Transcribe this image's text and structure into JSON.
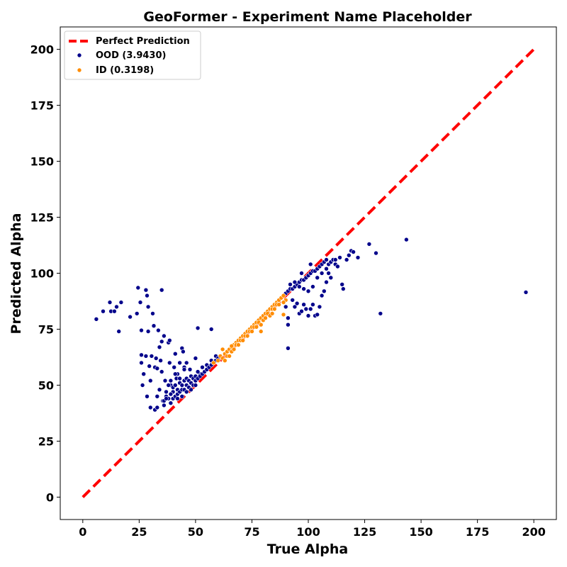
{
  "chart_data": {
    "type": "scatter",
    "title": "GeoFormer - Experiment Name Placeholder",
    "xlabel": "True Alpha",
    "ylabel": "Predicted Alpha",
    "xlim": [
      -10,
      210
    ],
    "ylim": [
      -10,
      210
    ],
    "xticks": [
      0,
      25,
      50,
      75,
      100,
      125,
      150,
      175,
      200
    ],
    "yticks": [
      0,
      25,
      50,
      75,
      100,
      125,
      150,
      175,
      200
    ],
    "grid": false,
    "legend_position": "top-left",
    "reference_line": {
      "name": "Perfect Prediction",
      "color": "#ff0000",
      "style": "dashed",
      "x": [
        0,
        200
      ],
      "y": [
        0,
        200
      ]
    },
    "series": [
      {
        "name": "OOD (3.9430)",
        "color": "#00008b",
        "points": [
          [
            6,
            79.5
          ],
          [
            9,
            83
          ],
          [
            12,
            87
          ],
          [
            12.5,
            83
          ],
          [
            14,
            83
          ],
          [
            15,
            85
          ],
          [
            16,
            74
          ],
          [
            17,
            87
          ],
          [
            21,
            80.5
          ],
          [
            24,
            82
          ],
          [
            24.5,
            93.5
          ],
          [
            25.5,
            87
          ],
          [
            26,
            74.5
          ],
          [
            26,
            63.5
          ],
          [
            26,
            60
          ],
          [
            26.5,
            50
          ],
          [
            27,
            55
          ],
          [
            28,
            92.5
          ],
          [
            28,
            63
          ],
          [
            28.5,
            90
          ],
          [
            28.5,
            45
          ],
          [
            29,
            85
          ],
          [
            29,
            74
          ],
          [
            29.5,
            58.5
          ],
          [
            30,
            40
          ],
          [
            30,
            52
          ],
          [
            30.5,
            63
          ],
          [
            31,
            82
          ],
          [
            31.5,
            76.5
          ],
          [
            32,
            58
          ],
          [
            32,
            39
          ],
          [
            32.5,
            62
          ],
          [
            33,
            57.5
          ],
          [
            33,
            45
          ],
          [
            33,
            40
          ],
          [
            33.5,
            74.5
          ],
          [
            34,
            67
          ],
          [
            34,
            48
          ],
          [
            34.5,
            61
          ],
          [
            35,
            92.5
          ],
          [
            35,
            69.5
          ],
          [
            35,
            56
          ],
          [
            35.5,
            43
          ],
          [
            36,
            72
          ],
          [
            36.5,
            52
          ],
          [
            37,
            45
          ],
          [
            38,
            69
          ],
          [
            38.5,
            60
          ],
          [
            38.5,
            70
          ],
          [
            39,
            50
          ],
          [
            40,
            47
          ],
          [
            40.5,
            58
          ],
          [
            41,
            64
          ],
          [
            41.5,
            53
          ],
          [
            42,
            55
          ],
          [
            43,
            60
          ],
          [
            44,
            66.5
          ],
          [
            44.5,
            65
          ],
          [
            45,
            58
          ],
          [
            46,
            60
          ],
          [
            47.5,
            57
          ],
          [
            50,
            62
          ],
          [
            51,
            75.5
          ],
          [
            52,
            55
          ],
          [
            55,
            59
          ],
          [
            57,
            75
          ],
          [
            36,
            43
          ],
          [
            37,
            47
          ],
          [
            38,
            44
          ],
          [
            38,
            50
          ],
          [
            39,
            46
          ],
          [
            40,
            44
          ],
          [
            40,
            49
          ],
          [
            41,
            45
          ],
          [
            41,
            50
          ],
          [
            42,
            46
          ],
          [
            42,
            48
          ],
          [
            43,
            47
          ],
          [
            43,
            51
          ],
          [
            44,
            48
          ],
          [
            44,
            50
          ],
          [
            45,
            48
          ],
          [
            45,
            52
          ],
          [
            46,
            50
          ],
          [
            46,
            53
          ],
          [
            47,
            49
          ],
          [
            47,
            52
          ],
          [
            48,
            51
          ],
          [
            48,
            54
          ],
          [
            49,
            50
          ],
          [
            49,
            53
          ],
          [
            50,
            52
          ],
          [
            50,
            54
          ],
          [
            51,
            53
          ],
          [
            51,
            56
          ],
          [
            52,
            54
          ],
          [
            53,
            55
          ],
          [
            53,
            58
          ],
          [
            54,
            56
          ],
          [
            55,
            57
          ],
          [
            55,
            59
          ],
          [
            56,
            58
          ],
          [
            57,
            59
          ],
          [
            57,
            61
          ],
          [
            58,
            60
          ],
          [
            59,
            61
          ],
          [
            59,
            63
          ],
          [
            60,
            62
          ],
          [
            36,
            41
          ],
          [
            37,
            44
          ],
          [
            39,
            42
          ],
          [
            42,
            44
          ],
          [
            44,
            45
          ],
          [
            46,
            47
          ],
          [
            48,
            48
          ],
          [
            50,
            50
          ],
          [
            39,
            52
          ],
          [
            41,
            55
          ],
          [
            43,
            53
          ],
          [
            45,
            57
          ],
          [
            89,
            90
          ],
          [
            90,
            91
          ],
          [
            91,
            92
          ],
          [
            92,
            93
          ],
          [
            93,
            93
          ],
          [
            94,
            94
          ],
          [
            95,
            95
          ],
          [
            96,
            96
          ],
          [
            97,
            97
          ],
          [
            98,
            97
          ],
          [
            99,
            98
          ],
          [
            100,
            99
          ],
          [
            101,
            100
          ],
          [
            102,
            101
          ],
          [
            103,
            101
          ],
          [
            104,
            102
          ],
          [
            105,
            103
          ],
          [
            106,
            104
          ],
          [
            107,
            105
          ],
          [
            108,
            106
          ],
          [
            109,
            104
          ],
          [
            110,
            105
          ],
          [
            111,
            106
          ],
          [
            112,
            104
          ],
          [
            113,
            103
          ],
          [
            92,
            95
          ],
          [
            94,
            96
          ],
          [
            96,
            94
          ],
          [
            98,
            93
          ],
          [
            100,
            92
          ],
          [
            102,
            94
          ],
          [
            104,
            98
          ],
          [
            106,
            100
          ],
          [
            108,
            102
          ],
          [
            97,
            100
          ],
          [
            101,
            104
          ],
          [
            90,
            85
          ],
          [
            91,
            80
          ],
          [
            91,
            77
          ],
          [
            91,
            66.5
          ],
          [
            93,
            88
          ],
          [
            94,
            85
          ],
          [
            95,
            86.5
          ],
          [
            96,
            82
          ],
          [
            97,
            83
          ],
          [
            98,
            86
          ],
          [
            99,
            84
          ],
          [
            100,
            81
          ],
          [
            101,
            84
          ],
          [
            102,
            86
          ],
          [
            103,
            81
          ],
          [
            104,
            81.5
          ],
          [
            105,
            85
          ],
          [
            106,
            90
          ],
          [
            107,
            92
          ],
          [
            108,
            96
          ],
          [
            109,
            100
          ],
          [
            110,
            98
          ],
          [
            112,
            106
          ],
          [
            114,
            107
          ],
          [
            115,
            95
          ],
          [
            115.5,
            93
          ],
          [
            117,
            106
          ],
          [
            118,
            108
          ],
          [
            119,
            110
          ],
          [
            120,
            109.5
          ],
          [
            122,
            107
          ],
          [
            127,
            113
          ],
          [
            130,
            109
          ],
          [
            132,
            82
          ],
          [
            143.5,
            115
          ],
          [
            196.5,
            91.5
          ]
        ]
      },
      {
        "name": "ID (0.3198)",
        "color": "#ff8c00",
        "points": [
          [
            58,
            60
          ],
          [
            60,
            61
          ],
          [
            61,
            63
          ],
          [
            62,
            62
          ],
          [
            62,
            66
          ],
          [
            63,
            64
          ],
          [
            64,
            65
          ],
          [
            65,
            66
          ],
          [
            66,
            67
          ],
          [
            67,
            68
          ],
          [
            68,
            69
          ],
          [
            69,
            70
          ],
          [
            70,
            71
          ],
          [
            71,
            72
          ],
          [
            72,
            73
          ],
          [
            73,
            74
          ],
          [
            74,
            75
          ],
          [
            75,
            76
          ],
          [
            76,
            77
          ],
          [
            77,
            78
          ],
          [
            78,
            79
          ],
          [
            79,
            80
          ],
          [
            80,
            81
          ],
          [
            81,
            82
          ],
          [
            82,
            83
          ],
          [
            83,
            84
          ],
          [
            84,
            85
          ],
          [
            85,
            86
          ],
          [
            86,
            87
          ],
          [
            87,
            88
          ],
          [
            88,
            89
          ],
          [
            89,
            90
          ],
          [
            90,
            88
          ],
          [
            64,
            63
          ],
          [
            66,
            65
          ],
          [
            68,
            68
          ],
          [
            70,
            70
          ],
          [
            72,
            72
          ],
          [
            74,
            74
          ],
          [
            76,
            76
          ],
          [
            78,
            78
          ],
          [
            80,
            79
          ],
          [
            82,
            82
          ],
          [
            84,
            84
          ],
          [
            86,
            86
          ],
          [
            63,
            61
          ],
          [
            65,
            63
          ],
          [
            67,
            66
          ],
          [
            69,
            68
          ],
          [
            71,
            70
          ],
          [
            73,
            72
          ],
          [
            75,
            74
          ],
          [
            77,
            76
          ],
          [
            79,
            77
          ],
          [
            81,
            80
          ],
          [
            83,
            81
          ],
          [
            85,
            84
          ],
          [
            87,
            86
          ],
          [
            89,
            87
          ],
          [
            79,
            74
          ],
          [
            84,
            82
          ],
          [
            89,
            81.5
          ],
          [
            66,
            67.5
          ]
        ]
      }
    ]
  }
}
